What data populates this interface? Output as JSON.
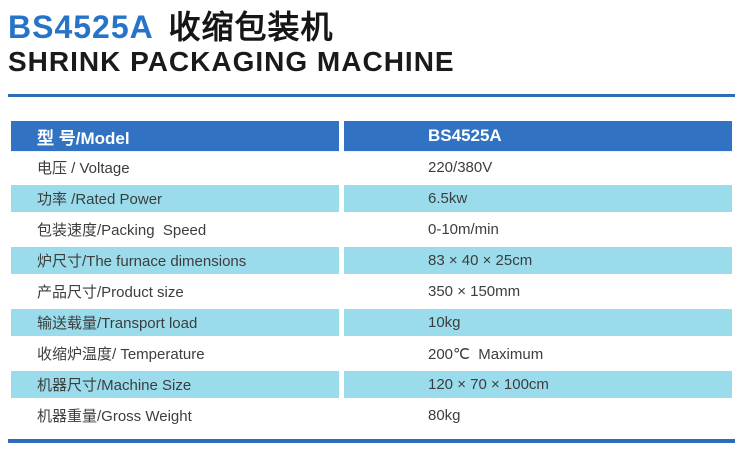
{
  "page": {
    "title_model": "BS4525A",
    "title_cn": "收缩包装机",
    "subtitle": "SHRINK PACKAGING MACHINE"
  },
  "colors": {
    "title_blue": "#2673c8",
    "header_blue": "#3173c2",
    "row_blue": "#9adcec",
    "rule_blue": "#2e6bb8",
    "text_dark": "#3d3d3d"
  },
  "table": {
    "header": {
      "label": "型 号/Model",
      "value": "BS4525A"
    },
    "rows": [
      {
        "label": "电压 / Voltage",
        "value": "220/380V"
      },
      {
        "label": "功率 /Rated Power",
        "value": "6.5kw"
      },
      {
        "label": "包装速度/Packing  Speed",
        "value": "0-10m/min"
      },
      {
        "label": "炉尺寸/The furnace dimensions",
        "value": "83 × 40 × 25cm"
      },
      {
        "label": "产品尺寸/Product size",
        "value": "350 × 150mm"
      },
      {
        "label": "输送载量/Transport load",
        "value": "10kg"
      },
      {
        "label": "收缩炉温度/ Temperature",
        "value": "200℃  Maximum"
      },
      {
        "label": "机器尺寸/Machine Size",
        "value": "120 × 70 × 100cm"
      },
      {
        "label": "机器重量/Gross Weight",
        "value": "80kg"
      }
    ]
  }
}
